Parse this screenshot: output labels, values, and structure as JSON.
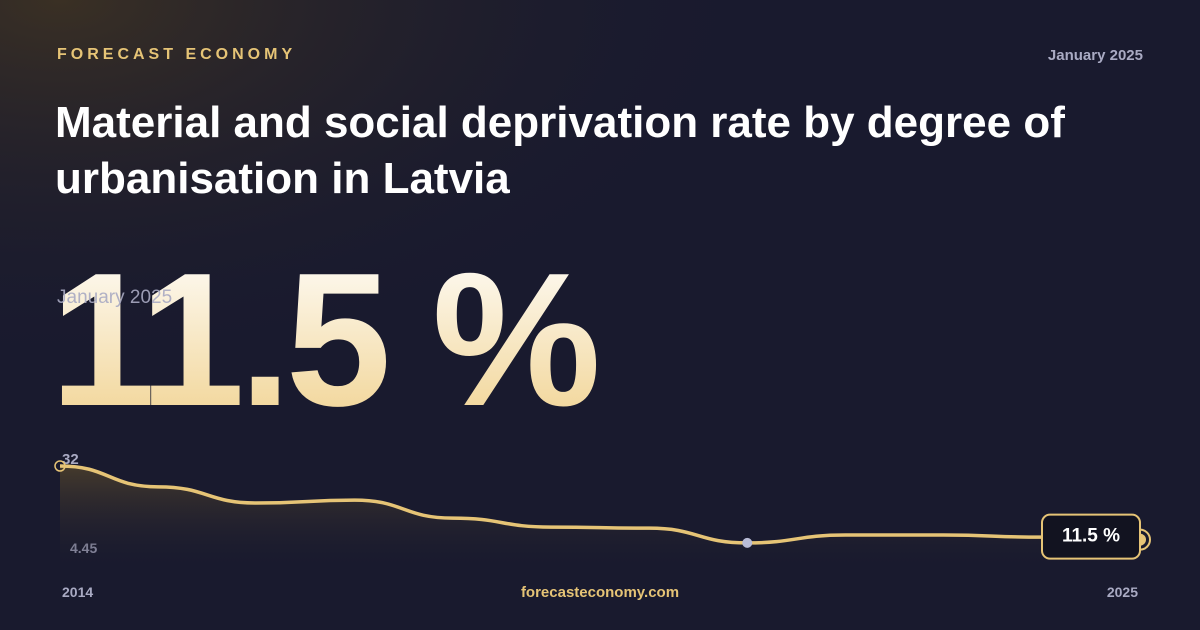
{
  "brand": "FORECAST ECONOMY",
  "date": "January 2025",
  "footer": "forecasteconomy.com",
  "chart_data": {
    "type": "line",
    "title": "Material and social deprivation rate by degree of urbanisation in Latvia",
    "subtitle": "January 2025",
    "categories": [
      "2014",
      null,
      null,
      null,
      null,
      null,
      null,
      null,
      null,
      null,
      null,
      "2025"
    ],
    "values": [
      32,
      26.2,
      21.7,
      22.5,
      17.5,
      15.0,
      14.7,
      10.6,
      12.8,
      12.8,
      12.2,
      11.5
    ],
    "value_labels": [
      null,
      null,
      null,
      null,
      null,
      null,
      null,
      null,
      null,
      null,
      null,
      "11.5 %"
    ],
    "color": "#e6c476",
    "ylim": [
      4.45,
      32
    ],
    "yticks": [
      4.45,
      32
    ]
  }
}
